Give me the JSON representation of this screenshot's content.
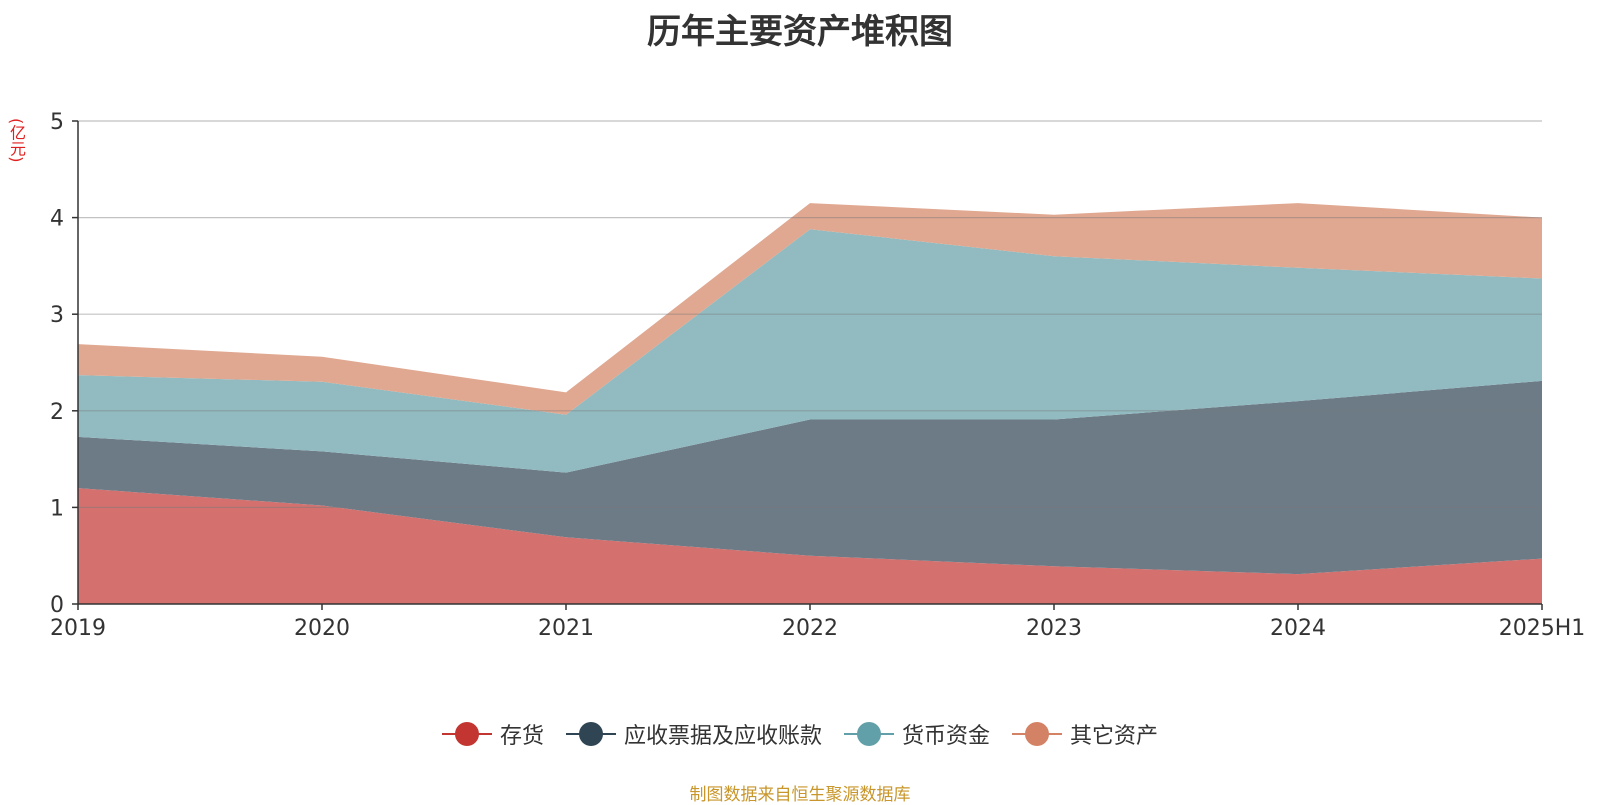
{
  "title": "历年主要资产堆积图",
  "unit_label": "(亿元)",
  "source_note": "制图数据来自恒生聚源数据库",
  "chart_data": {
    "type": "area",
    "stacked": true,
    "title": "历年主要资产堆积图",
    "ylabel": "(亿元)",
    "ylim": [
      0,
      5
    ],
    "yticks": [
      0,
      1,
      2,
      3,
      4,
      5
    ],
    "grid": true,
    "legend_position": "bottom",
    "categories": [
      "2019",
      "2020",
      "2021",
      "2022",
      "2023",
      "2024",
      "2025H1"
    ],
    "series": [
      {
        "name": "存货",
        "color": "#c23531",
        "fill": "#d4716e",
        "values": [
          1.2,
          1.02,
          0.69,
          0.5,
          0.39,
          0.31,
          0.47
        ]
      },
      {
        "name": "应收票据及应收账款",
        "color": "#2f4554",
        "fill": "#6d7b87",
        "values": [
          0.53,
          0.56,
          0.67,
          1.41,
          1.52,
          1.79,
          1.84
        ]
      },
      {
        "name": "货币资金",
        "color": "#61a0a8",
        "fill": "#91bbc1",
        "values": [
          0.64,
          0.72,
          0.6,
          1.97,
          1.69,
          1.38,
          1.06
        ]
      },
      {
        "name": "其它资产",
        "color": "#d48265",
        "fill": "#e0a891",
        "values": [
          0.32,
          0.26,
          0.23,
          0.27,
          0.43,
          0.67,
          0.63
        ]
      }
    ]
  }
}
